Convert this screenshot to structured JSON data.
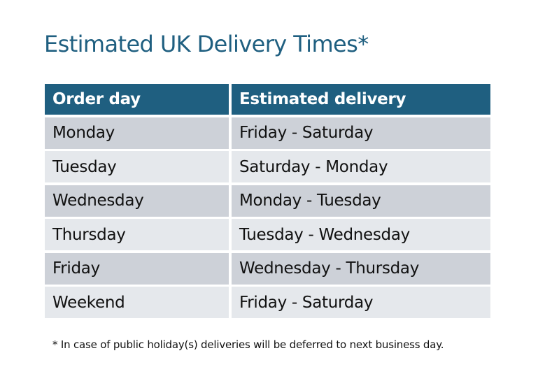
{
  "title": "Estimated UK Delivery Times*",
  "table": {
    "headers": [
      "Order day",
      "Estimated delivery"
    ],
    "rows": [
      [
        "Monday",
        "Friday - Saturday"
      ],
      [
        "Tuesday",
        "Saturday - Monday"
      ],
      [
        "Wednesday",
        "Monday - Tuesday"
      ],
      [
        "Thursday",
        "Tuesday - Wednesday"
      ],
      [
        "Friday",
        "Wednesday - Thursday"
      ],
      [
        "Weekend",
        "Friday - Saturday"
      ]
    ]
  },
  "footnote": "* In case of public holiday(s) deliveries will be deferred to next business day.",
  "colors": {
    "header": "#1F5F80",
    "row_dark": "#CDD1D8",
    "row_light": "#E5E8EC",
    "title": "#1F5F80"
  }
}
